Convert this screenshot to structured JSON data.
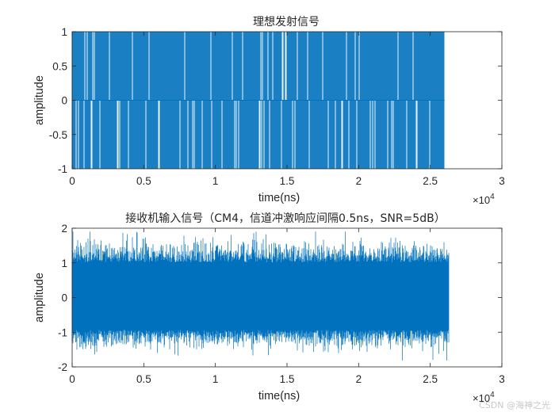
{
  "chart_data": [
    {
      "type": "line",
      "title": "理想发射信号",
      "xlabel": "time(ns)",
      "ylabel": "amplitude",
      "xlim": [
        0,
        30000
      ],
      "ylim": [
        -1,
        1
      ],
      "x_exponent_label": "×10",
      "x_exponent_power": "4",
      "xticks": [
        0,
        5000,
        10000,
        15000,
        20000,
        25000,
        30000
      ],
      "xtick_labels": [
        "0",
        "0.5",
        "1",
        "1.5",
        "2",
        "2.5",
        "3"
      ],
      "yticks": [
        -1,
        -0.5,
        0,
        0.5,
        1
      ],
      "ytick_labels": [
        "-1",
        "-0.5",
        "0",
        "0.5",
        "1"
      ],
      "series": [
        {
          "color": "#0072BD",
          "signal": "bipolar pulse train",
          "x_start": 0,
          "x_end": 26000,
          "levels": [
            -1,
            0,
            1
          ]
        }
      ]
    },
    {
      "type": "line",
      "title": "接收机输入信号（CM4，信道冲激响应间隔0.5ns，SNR=5dB）",
      "xlabel": "time(ns)",
      "ylabel": "amplitude",
      "xlim": [
        0,
        30000
      ],
      "ylim": [
        -2,
        2
      ],
      "x_exponent_label": "×10",
      "x_exponent_power": "4",
      "xticks": [
        0,
        5000,
        10000,
        15000,
        20000,
        25000,
        30000
      ],
      "xtick_labels": [
        "0",
        "0.5",
        "1",
        "1.5",
        "2",
        "2.5",
        "3"
      ],
      "yticks": [
        -2,
        -1,
        0,
        1,
        2
      ],
      "ytick_labels": [
        "-2",
        "-1",
        "0",
        "1",
        "2"
      ],
      "series": [
        {
          "color": "#0072BD",
          "signal": "noisy received waveform",
          "x_start": 0,
          "x_end": 26300,
          "typical_envelope": [
            -1.2,
            1.3
          ],
          "peak_range": [
            -2.0,
            1.9
          ]
        }
      ]
    }
  ],
  "watermark": "CSDN @海神之光"
}
